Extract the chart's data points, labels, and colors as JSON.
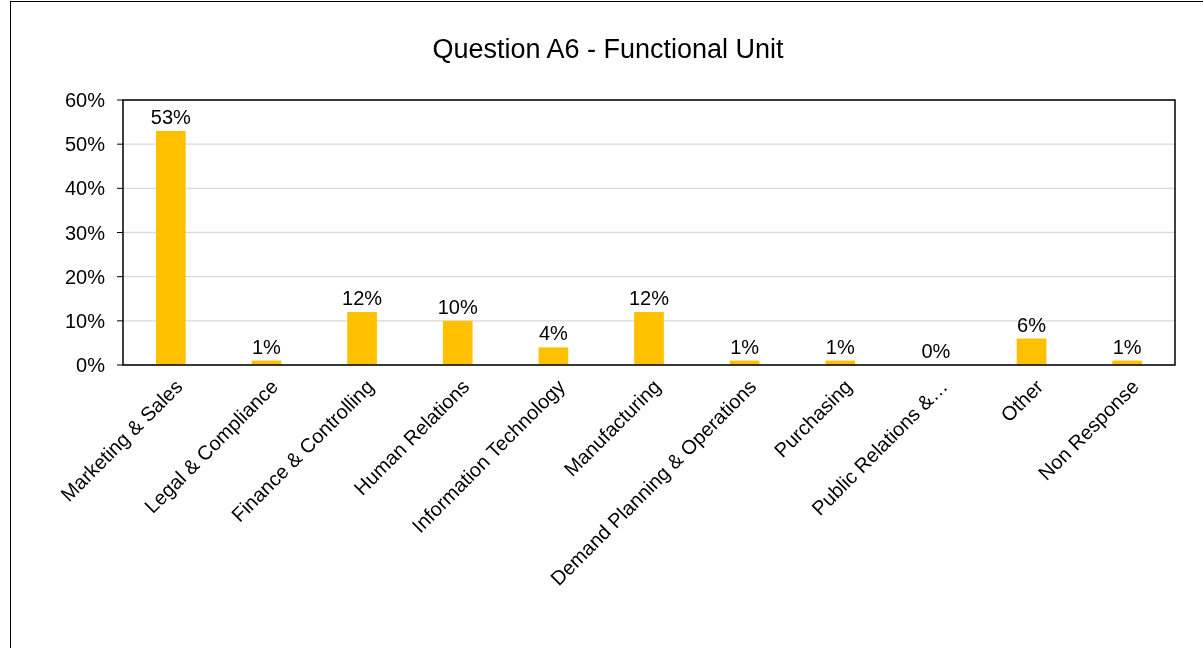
{
  "chart_data": {
    "type": "bar",
    "title": "Question A6 - Functional Unit",
    "categories": [
      "Marketing & Sales",
      "Legal & Compliance",
      "Finance & Controlling",
      "Human Relations",
      "Information Technology",
      "Manufacturing",
      "Demand Planning & Operations",
      "Purchasing",
      "Public Relations &…",
      "Other",
      "Non Response"
    ],
    "values": [
      53,
      1,
      12,
      10,
      4,
      12,
      1,
      1,
      0,
      6,
      1
    ],
    "value_labels": [
      "53%",
      "1%",
      "12%",
      "10%",
      "4%",
      "12%",
      "1%",
      "1%",
      "0%",
      "6%",
      "1%"
    ],
    "color": "#ffc000",
    "ylim": [
      0,
      60
    ],
    "yticks": [
      {
        "value": 0,
        "label": "0%"
      },
      {
        "value": 10,
        "label": "10%"
      },
      {
        "value": 20,
        "label": "20%"
      },
      {
        "value": 30,
        "label": "30%"
      },
      {
        "value": 40,
        "label": "40%"
      },
      {
        "value": 50,
        "label": "50%"
      },
      {
        "value": 60,
        "label": "60%"
      }
    ],
    "grid": "y"
  }
}
